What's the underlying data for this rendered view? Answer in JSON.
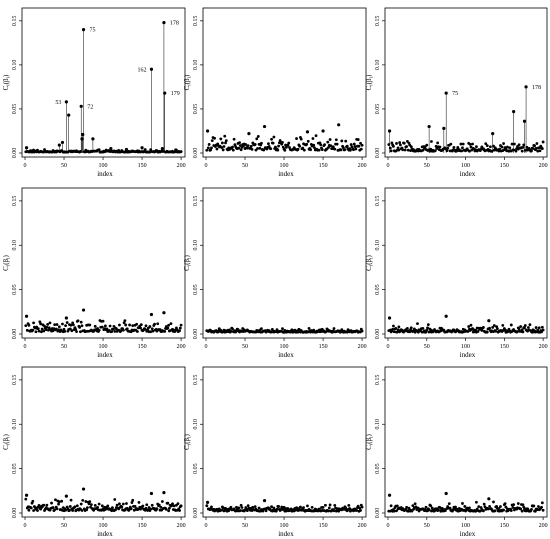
{
  "chart_data": [
    {
      "type": "scatter",
      "row": 1,
      "col": 1,
      "xlabel": "index",
      "ylabel": "C_i(β_i)",
      "xlim": [
        0,
        205
      ],
      "ylim": [
        0,
        0.16
      ],
      "xticks": [
        0,
        50,
        100,
        150,
        200
      ],
      "yticks": [
        0.0,
        0.05,
        0.1,
        0.15
      ],
      "ytick_labels": [
        "0.00",
        "0.05",
        "0.10",
        "0.15"
      ],
      "vertical_lines": true,
      "labeled_points": [
        {
          "x": 53,
          "y": 0.058,
          "label": "53"
        },
        {
          "x": 72,
          "y": 0.053,
          "label": "72"
        },
        {
          "x": 75,
          "y": 0.14,
          "label": "75"
        },
        {
          "x": 162,
          "y": 0.095,
          "label": "162"
        },
        {
          "x": 178,
          "y": 0.148,
          "label": "178"
        },
        {
          "x": 179,
          "y": 0.068,
          "label": "179"
        }
      ],
      "other_points": [
        {
          "x": 56,
          "y": 0.043
        },
        {
          "x": 74,
          "y": 0.021
        },
        {
          "x": 73,
          "y": 0.016
        },
        {
          "x": 87,
          "y": 0.016
        },
        {
          "x": 48,
          "y": 0.012
        },
        {
          "x": 44,
          "y": 0.009
        },
        {
          "x": 2,
          "y": 0.006
        },
        {
          "x": 110,
          "y": 0.005
        },
        {
          "x": 130,
          "y": 0.004
        },
        {
          "x": 176,
          "y": 0.005
        },
        {
          "x": 150,
          "y": 0.006
        }
      ],
      "baseline_level": 0.002
    },
    {
      "type": "scatter",
      "row": 1,
      "col": 2,
      "xlabel": "index",
      "ylabel": "C_i(β_i)",
      "xlim": [
        0,
        205
      ],
      "ylim": [
        0,
        0.16
      ],
      "xticks": [
        0,
        50,
        100,
        150,
        200
      ],
      "yticks": [
        0.0,
        0.05,
        0.1,
        0.15
      ],
      "ytick_labels": [
        "0.00",
        "0.05",
        "0.10",
        "0.15"
      ],
      "vertical_lines": false,
      "labeled_points": [],
      "other_points": [
        {
          "x": 2,
          "y": 0.025
        },
        {
          "x": 75,
          "y": 0.03
        },
        {
          "x": 170,
          "y": 0.032
        },
        {
          "x": 130,
          "y": 0.024
        },
        {
          "x": 150,
          "y": 0.025
        },
        {
          "x": 55,
          "y": 0.022
        }
      ],
      "baseline_level": 0.006,
      "spread": 0.018
    },
    {
      "type": "scatter",
      "row": 1,
      "col": 3,
      "xlabel": "index",
      "ylabel": "C_i(β_i)",
      "xlim": [
        0,
        205
      ],
      "ylim": [
        0,
        0.16
      ],
      "xticks": [
        0,
        50,
        100,
        150,
        200
      ],
      "yticks": [
        0.0,
        0.05,
        0.1,
        0.15
      ],
      "ytick_labels": [
        "0.00",
        "0.05",
        "0.10",
        "0.15"
      ],
      "vertical_lines": true,
      "labeled_points": [
        {
          "x": 75,
          "y": 0.068,
          "label": "75"
        },
        {
          "x": 178,
          "y": 0.075,
          "label": "178"
        }
      ],
      "other_points": [
        {
          "x": 162,
          "y": 0.047
        },
        {
          "x": 176,
          "y": 0.036
        },
        {
          "x": 2,
          "y": 0.025
        },
        {
          "x": 53,
          "y": 0.03
        },
        {
          "x": 72,
          "y": 0.028
        },
        {
          "x": 135,
          "y": 0.022
        }
      ],
      "baseline_level": 0.004,
      "spread": 0.012
    },
    {
      "type": "scatter",
      "row": 2,
      "col": 1,
      "xlabel": "index",
      "ylabel": "C_i(β_i)",
      "xlim": [
        0,
        205
      ],
      "ylim": [
        0,
        0.16
      ],
      "xticks": [
        0,
        50,
        100,
        150,
        200
      ],
      "yticks": [
        0.0,
        0.05,
        0.1,
        0.15
      ],
      "ytick_labels": [
        "0.00",
        "0.05",
        "0.10",
        "0.15"
      ],
      "vertical_lines": false,
      "labeled_points": [],
      "other_points": [
        {
          "x": 75,
          "y": 0.027
        },
        {
          "x": 178,
          "y": 0.024
        },
        {
          "x": 162,
          "y": 0.022
        },
        {
          "x": 2,
          "y": 0.02
        },
        {
          "x": 53,
          "y": 0.018
        }
      ],
      "baseline_level": 0.005,
      "spread": 0.014
    },
    {
      "type": "scatter",
      "row": 2,
      "col": 2,
      "xlabel": "index",
      "ylabel": "C_i(β_i)",
      "xlim": [
        0,
        205
      ],
      "ylim": [
        0,
        0.16
      ],
      "xticks": [
        0,
        50,
        100,
        150,
        200
      ],
      "yticks": [
        0.0,
        0.05,
        0.1,
        0.15
      ],
      "ytick_labels": [
        "0.00",
        "0.05",
        "0.10",
        "0.15"
      ],
      "vertical_lines": false,
      "labeled_points": [],
      "other_points": [],
      "baseline_level": 0.004,
      "spread": 0.005
    },
    {
      "type": "scatter",
      "row": 2,
      "col": 3,
      "xlabel": "index",
      "ylabel": "C_i(β_i)",
      "xlim": [
        0,
        205
      ],
      "ylim": [
        0,
        0.16
      ],
      "xticks": [
        0,
        50,
        100,
        150,
        200
      ],
      "yticks": [
        0.0,
        0.05,
        0.1,
        0.15
      ],
      "ytick_labels": [
        "0.00",
        "0.05",
        "0.10",
        "0.15"
      ],
      "vertical_lines": false,
      "labeled_points": [],
      "other_points": [
        {
          "x": 2,
          "y": 0.018
        },
        {
          "x": 75,
          "y": 0.02
        },
        {
          "x": 130,
          "y": 0.015
        }
      ],
      "baseline_level": 0.004,
      "spread": 0.01
    },
    {
      "type": "scatter",
      "row": 3,
      "col": 1,
      "xlabel": "index",
      "ylabel": "C_i(β_i)",
      "xlim": [
        0,
        205
      ],
      "ylim": [
        0,
        0.16
      ],
      "xticks": [
        0,
        50,
        100,
        150,
        200
      ],
      "yticks": [
        0.0,
        0.05,
        0.1,
        0.15
      ],
      "ytick_labels": [
        "0.00",
        "0.05",
        "0.10",
        "0.15"
      ],
      "vertical_lines": false,
      "labeled_points": [],
      "other_points": [
        {
          "x": 75,
          "y": 0.027
        },
        {
          "x": 162,
          "y": 0.022
        },
        {
          "x": 178,
          "y": 0.023
        },
        {
          "x": 2,
          "y": 0.02
        },
        {
          "x": 53,
          "y": 0.019
        }
      ],
      "baseline_level": 0.005,
      "spread": 0.014
    },
    {
      "type": "scatter",
      "row": 3,
      "col": 2,
      "xlabel": "index",
      "ylabel": "C_i(β_i)",
      "xlim": [
        0,
        205
      ],
      "ylim": [
        0,
        0.16
      ],
      "xticks": [
        0,
        50,
        100,
        150,
        200
      ],
      "yticks": [
        0.0,
        0.05,
        0.1,
        0.15
      ],
      "ytick_labels": [
        "0.00",
        "0.05",
        "0.10",
        "0.15"
      ],
      "vertical_lines": false,
      "labeled_points": [],
      "other_points": [
        {
          "x": 2,
          "y": 0.012
        },
        {
          "x": 75,
          "y": 0.014
        }
      ],
      "baseline_level": 0.004,
      "spread": 0.008
    },
    {
      "type": "scatter",
      "row": 3,
      "col": 3,
      "xlabel": "index",
      "ylabel": "C_i(β_i)",
      "xlim": [
        0,
        205
      ],
      "ylim": [
        0,
        0.16
      ],
      "xticks": [
        0,
        50,
        100,
        150,
        200
      ],
      "yticks": [
        0.0,
        0.05,
        0.1,
        0.15
      ],
      "ytick_labels": [
        "0.00",
        "0.05",
        "0.10",
        "0.15"
      ],
      "vertical_lines": false,
      "labeled_points": [],
      "other_points": [
        {
          "x": 2,
          "y": 0.02
        },
        {
          "x": 75,
          "y": 0.022
        },
        {
          "x": 130,
          "y": 0.016
        }
      ],
      "baseline_level": 0.004,
      "spread": 0.012
    }
  ]
}
